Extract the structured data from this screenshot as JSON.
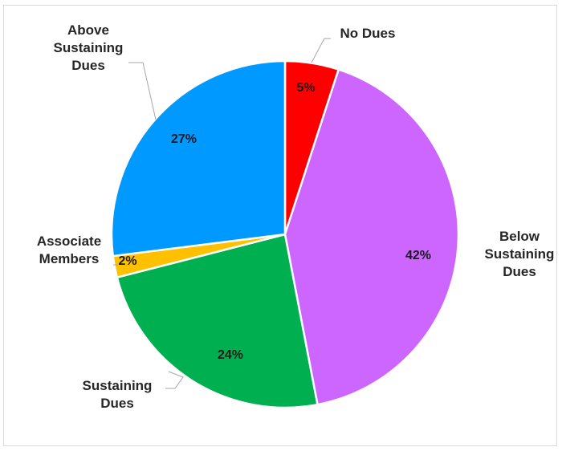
{
  "chart_data": {
    "type": "pie",
    "title": "",
    "slices": [
      {
        "label": "No Dues",
        "label_lines": [
          "No Dues"
        ],
        "value": 5,
        "data_label": "5%",
        "color": "#ff0000"
      },
      {
        "label": "Below Sustaining Dues",
        "label_lines": [
          "Below",
          "Sustaining",
          "Dues"
        ],
        "value": 42,
        "data_label": "42%",
        "color": "#cc66ff"
      },
      {
        "label": "Sustaining Dues",
        "label_lines": [
          "Sustaining",
          "Dues"
        ],
        "value": 24,
        "data_label": "24%",
        "color": "#00b050"
      },
      {
        "label": "Associate Members",
        "label_lines": [
          "Associate",
          "Members"
        ],
        "value": 2,
        "data_label": "2%",
        "color": "#ffc000"
      },
      {
        "label": "Above Sustaining Dues",
        "label_lines": [
          "Above",
          "Sustaining",
          "Dues"
        ],
        "value": 27,
        "data_label": "27%",
        "color": "#0099ff"
      }
    ],
    "start_angle": "12 o'clock",
    "direction": "clockwise",
    "slice_border_color": "#ffffff",
    "legend": "none"
  }
}
